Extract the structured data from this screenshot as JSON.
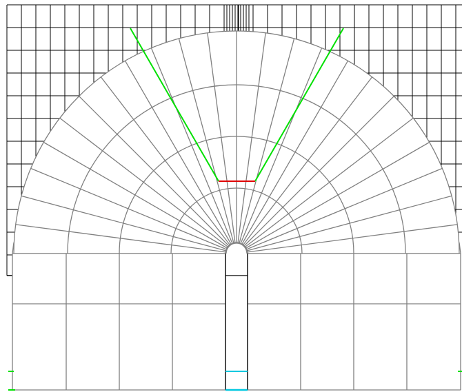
{
  "colors": {
    "background": "#ffffff",
    "background_grid": "#000000",
    "mesh_lines": "#808080",
    "boundary_green": "#00e000",
    "boundary_red": "#e00000",
    "boundary_cyan": "#00c8e0"
  },
  "mesh": {
    "radial_divisions": 24,
    "ring_count": 4,
    "column_divisions_each_side": 4,
    "row_divisions_lower_block": 2
  }
}
